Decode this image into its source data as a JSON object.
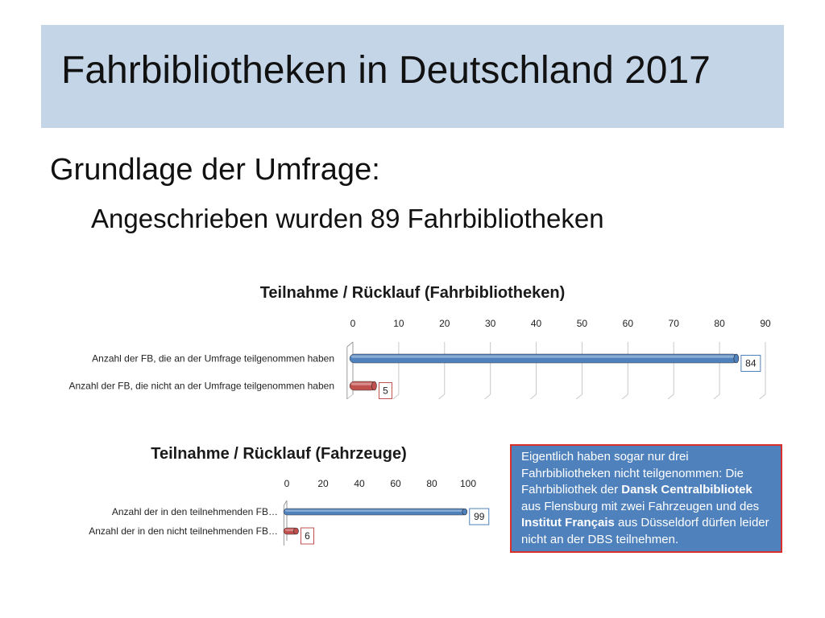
{
  "slide": {
    "title": "Fahrbibliotheken in Deutschland 2017",
    "subtitle": "Grundlage der Umfrage:",
    "detail": "Angeschrieben wurden 89 Fahrbibliotheken"
  },
  "note": {
    "before_1": "Eigentlich haben sogar nur drei Fahrbibliotheken nicht teilgenommen: Die Fahrbibliothek der ",
    "bold_1": "Dansk Centralbibliotek",
    "middle": " aus Flensburg mit zwei Fahrzeugen und des ",
    "bold_2": "Institut Français",
    "after": " aus Düsseldorf dürfen leider nicht an der DBS teilnehmen."
  },
  "colors": {
    "title_band": "#c5d5e8",
    "bar_blue": "#4f81bd",
    "bar_red": "#c0504d",
    "note_border": "#d9302c"
  },
  "chart_data": [
    {
      "type": "bar",
      "orientation": "horizontal",
      "title": "Teilnahme / Rücklauf (Fahrbibliotheken)",
      "categories": [
        "Anzahl der FB, die an der Umfrage teilgenommen haben",
        "Anzahl der FB, die nicht an der Umfrage teilgenommen haben"
      ],
      "values": [
        84,
        5
      ],
      "xlim": [
        0,
        90
      ],
      "ticks": [
        0,
        10,
        20,
        30,
        40,
        50,
        60,
        70,
        80,
        90
      ],
      "bar_colors": [
        "#4f81bd",
        "#c0504d"
      ],
      "axis_position": "top",
      "grid": true,
      "data_labels": true
    },
    {
      "type": "bar",
      "orientation": "horizontal",
      "title": "Teilnahme / Rücklauf (Fahrzeuge)",
      "categories": [
        "Anzahl der in den teilnehmenden FB…",
        "Anzahl der in den nicht teilnehmenden FB…"
      ],
      "values": [
        99,
        6
      ],
      "xlim": [
        0,
        100
      ],
      "ticks": [
        0,
        20,
        40,
        60,
        80,
        100
      ],
      "bar_colors": [
        "#4f81bd",
        "#c0504d"
      ],
      "axis_position": "top",
      "grid": false,
      "data_labels": true
    }
  ]
}
